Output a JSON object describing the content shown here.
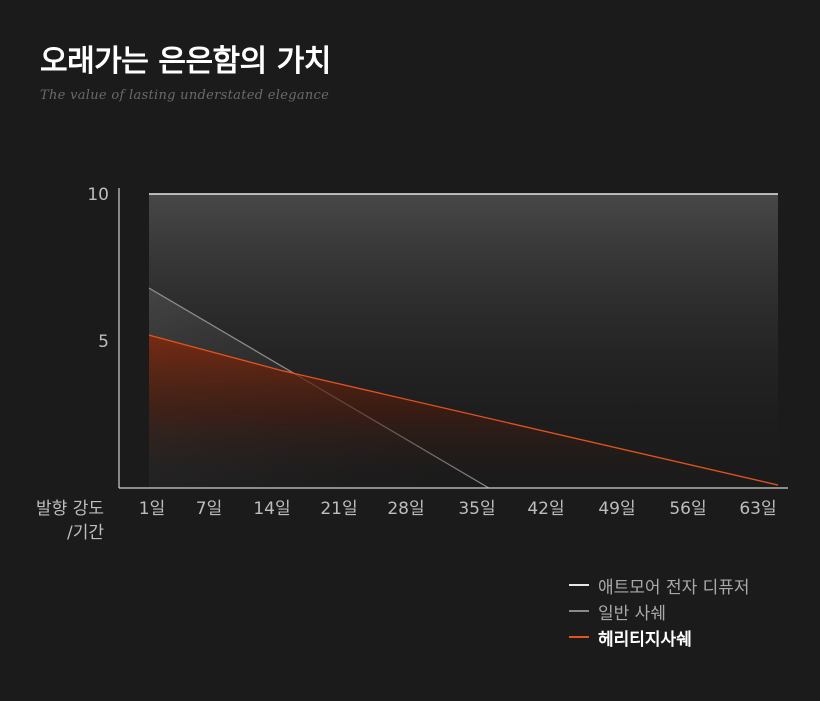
{
  "header": {
    "title": "오래가는 은은함의 가치",
    "subtitle": "The value of lasting understated elegance"
  },
  "legend": {
    "items": [
      {
        "label": "애트모어 전자 디퓨저",
        "color": "#e6e6e6",
        "active": false
      },
      {
        "label": "일반 사쉐",
        "color": "#8a8a8a",
        "active": false
      },
      {
        "label": "헤리티지사쉐",
        "color": "#e2531e",
        "active": true
      }
    ]
  },
  "chart_data": {
    "type": "line",
    "title": "오래가는 은은함의 가치",
    "subtitle": "The value of lasting understated elegance",
    "ylabel": "발향 강도\n/기간",
    "xlabel": "",
    "categories": [
      "1일",
      "7일",
      "14일",
      "21일",
      "28일",
      "35일",
      "42일",
      "49일",
      "56일",
      "63일"
    ],
    "x": [
      1,
      7,
      14,
      21,
      28,
      35,
      42,
      49,
      56,
      63
    ],
    "ylim": [
      0,
      10
    ],
    "yticks": [
      10,
      5
    ],
    "series": [
      {
        "name": "애트모어 전자 디퓨저",
        "color": "#e6e6e6",
        "x": [
          1,
          63
        ],
        "y": [
          10,
          10
        ],
        "fill": "gray"
      },
      {
        "name": "일반 사쉐",
        "color": "#8a8a8a",
        "x": [
          1,
          34.5
        ],
        "y": [
          6.8,
          0
        ],
        "fill": "gray-light"
      },
      {
        "name": "헤리티지사쉐",
        "color": "#e2531e",
        "x": [
          1,
          14,
          63
        ],
        "y": [
          5.2,
          4.0,
          0.1
        ],
        "fill": "orange"
      }
    ],
    "grid": false,
    "legend_position": "bottom-right"
  }
}
